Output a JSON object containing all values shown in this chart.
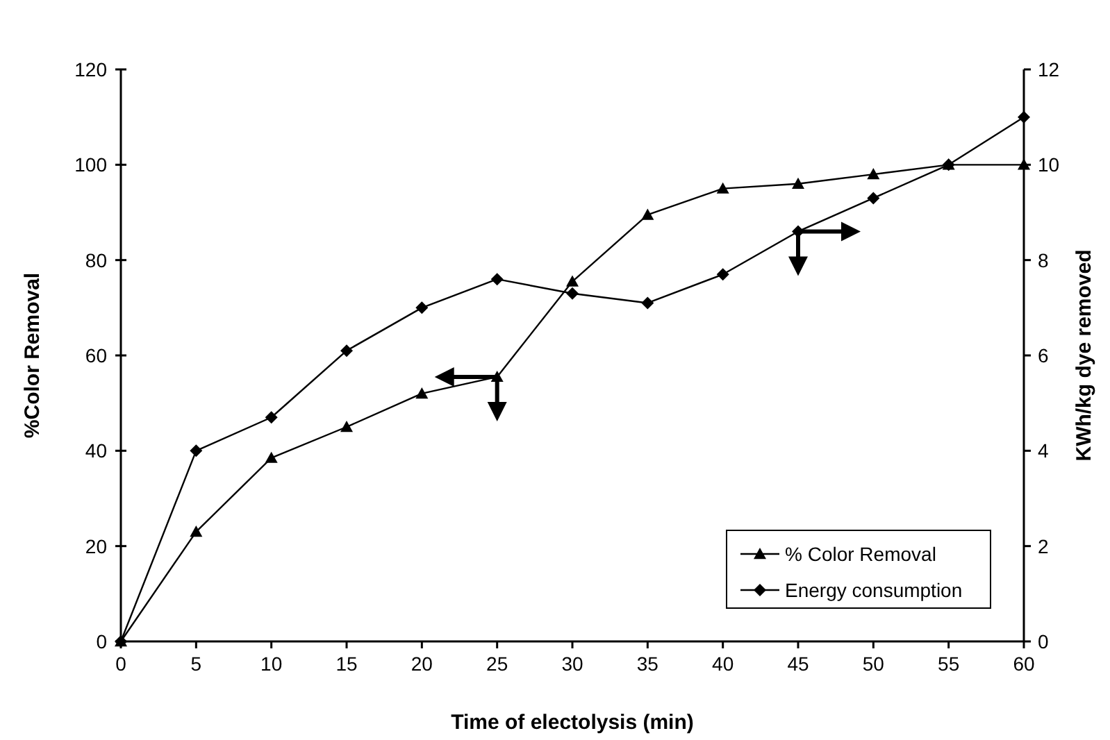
{
  "chart_data": {
    "type": "line",
    "xlabel": "Time of electolysis (min)",
    "ylabel": "%Color Removal",
    "y2label": "KWh/kg dye removed",
    "x": [
      0,
      5,
      10,
      15,
      20,
      25,
      30,
      35,
      40,
      45,
      50,
      55,
      60
    ],
    "series": [
      {
        "name": "% Color Removal",
        "color": "#000000",
        "marker": "triangle",
        "values": [
          0,
          23,
          38.5,
          45,
          52,
          55.5,
          75.5,
          89.5,
          95,
          96,
          98,
          100,
          100
        ]
      },
      {
        "name": "Energy consumption",
        "color": "#000000",
        "marker": "diamond",
        "axis": "y2",
        "values": [
          0,
          4,
          4.7,
          6.1,
          7,
          7.6,
          7.3,
          7.1,
          7.7,
          8.6,
          9.3,
          10,
          11
        ]
      }
    ],
    "xlim": [
      0,
      60
    ],
    "xticks": [
      0,
      5,
      10,
      15,
      20,
      25,
      30,
      35,
      40,
      45,
      50,
      55,
      60
    ],
    "ylim": [
      0,
      120
    ],
    "yticks": [
      0,
      20,
      40,
      60,
      80,
      100,
      120
    ],
    "y2lim": [
      0,
      12
    ],
    "y2ticks": [
      0,
      2,
      4,
      6,
      8,
      10,
      12
    ],
    "legend": "bottom right",
    "grid": false,
    "line_style": "solid"
  }
}
